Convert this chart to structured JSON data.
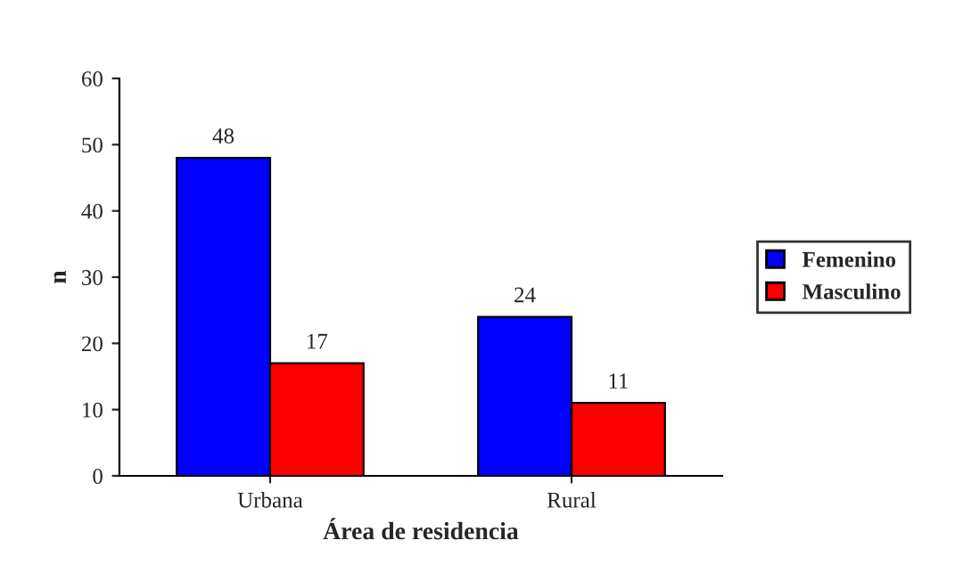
{
  "chart_data": {
    "type": "bar",
    "xlabel": "Área de residencia",
    "ylabel": "n",
    "categories": [
      "Urbana",
      "Rural"
    ],
    "series": [
      {
        "name": "Femenino",
        "color": "#0000ff",
        "values": [
          48,
          24
        ]
      },
      {
        "name": "Masculino",
        "color": "#ff0000",
        "values": [
          17,
          11
        ]
      }
    ],
    "ylim": [
      0,
      60
    ],
    "yticks": [
      0,
      10,
      20,
      30,
      40,
      50,
      60
    ],
    "data_labels": true,
    "grid": false,
    "legend": "right"
  }
}
